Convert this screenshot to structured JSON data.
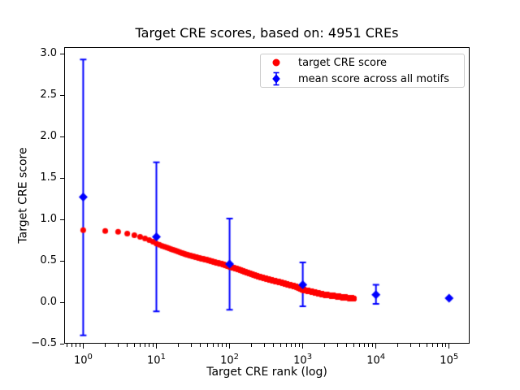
{
  "chart_data": {
    "type": "scatter",
    "title": "Target CRE scores, based on: 4951 CREs",
    "xlabel": "Target CRE rank (log)",
    "ylabel": "Target CRE score",
    "x_scale": "log",
    "xlim_log10": [
      -0.26,
      5.28
    ],
    "ylim": [
      -0.5,
      3.08
    ],
    "x_tick_base": "10",
    "x_tick_exponents": [
      0,
      1,
      2,
      3,
      4,
      5
    ],
    "y_ticks": [
      {
        "value": -0.5,
        "label": "−0.5"
      },
      {
        "value": 0.0,
        "label": "0.0"
      },
      {
        "value": 0.5,
        "label": "0.5"
      },
      {
        "value": 1.0,
        "label": "1.0"
      },
      {
        "value": 1.5,
        "label": "1.5"
      },
      {
        "value": 2.0,
        "label": "2.0"
      },
      {
        "value": 2.5,
        "label": "2.5"
      },
      {
        "value": 3.0,
        "label": "3.0"
      }
    ],
    "legend_position": "upper right",
    "series": [
      {
        "name": "target CRE score",
        "color": "#ff0000",
        "marker": "circle",
        "marker_size_px": 7,
        "n_points": 4951,
        "samples_rank_score": [
          [
            1,
            0.87
          ],
          [
            2,
            0.86
          ],
          [
            3,
            0.85
          ],
          [
            4,
            0.83
          ],
          [
            5,
            0.81
          ],
          [
            6,
            0.79
          ],
          [
            7,
            0.77
          ],
          [
            8,
            0.75
          ],
          [
            9,
            0.73
          ],
          [
            10,
            0.71
          ],
          [
            12,
            0.68
          ],
          [
            15,
            0.65
          ],
          [
            20,
            0.61
          ],
          [
            25,
            0.58
          ],
          [
            30,
            0.56
          ],
          [
            40,
            0.53
          ],
          [
            50,
            0.51
          ],
          [
            65,
            0.48
          ],
          [
            80,
            0.46
          ],
          [
            100,
            0.43
          ],
          [
            130,
            0.4
          ],
          [
            160,
            0.37
          ],
          [
            200,
            0.34
          ],
          [
            250,
            0.31
          ],
          [
            300,
            0.29
          ],
          [
            400,
            0.26
          ],
          [
            500,
            0.24
          ],
          [
            650,
            0.21
          ],
          [
            800,
            0.19
          ],
          [
            1000,
            0.15
          ],
          [
            1300,
            0.13
          ],
          [
            1600,
            0.11
          ],
          [
            2000,
            0.09
          ],
          [
            2500,
            0.08
          ],
          [
            3000,
            0.07
          ],
          [
            3500,
            0.06
          ],
          [
            4000,
            0.055
          ],
          [
            4500,
            0.05
          ],
          [
            4951,
            0.045
          ]
        ]
      },
      {
        "name": "mean score across all motifs",
        "color": "#0000ff",
        "marker": "diamond",
        "marker_size_px": 11,
        "points": [
          {
            "x": 1,
            "y": 1.27,
            "err_low": 1.67,
            "err_high": 1.66
          },
          {
            "x": 10,
            "y": 0.79,
            "err_low": 0.9,
            "err_high": 0.9
          },
          {
            "x": 100,
            "y": 0.46,
            "err_low": 0.55,
            "err_high": 0.55
          },
          {
            "x": 1000,
            "y": 0.21,
            "err_low": 0.26,
            "err_high": 0.27
          },
          {
            "x": 10000,
            "y": 0.09,
            "err_low": 0.11,
            "err_high": 0.12
          },
          {
            "x": 100000,
            "y": 0.05,
            "err_low": 0.0,
            "err_high": 0.0
          }
        ]
      }
    ]
  }
}
